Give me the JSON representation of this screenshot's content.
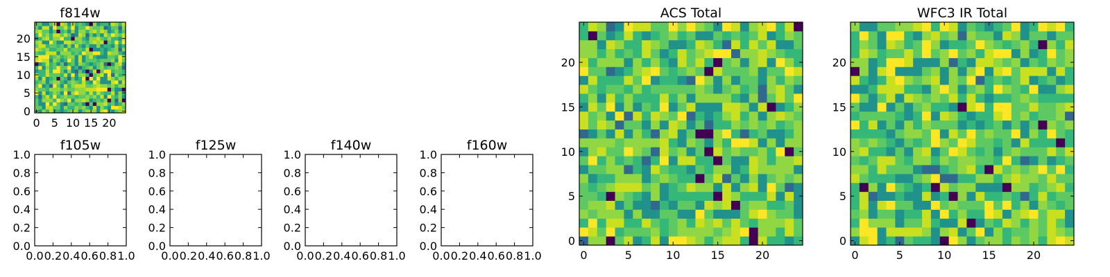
{
  "chart_data": [
    {
      "id": "f814w",
      "type": "heatmap",
      "title": "f814w",
      "grid": [
        25,
        25
      ],
      "xlim": [
        -0.5,
        24.5
      ],
      "ylim": [
        -0.5,
        24.5
      ],
      "xticks": [
        0,
        5,
        10,
        15,
        20
      ],
      "yticks": [
        0,
        5,
        10,
        15,
        20
      ],
      "colormap": "viridis",
      "values": "random noise 0-1"
    },
    {
      "id": "f105w",
      "type": "heatmap",
      "title": "f105w",
      "xlim": [
        0,
        1
      ],
      "ylim": [
        0,
        1
      ],
      "xticks": [
        "0.0",
        "0.2",
        "0.4",
        "0.6",
        "0.8",
        "1.0"
      ],
      "yticks": [
        "0.0",
        "0.2",
        "0.4",
        "0.6",
        "0.8",
        "1.0"
      ],
      "values": []
    },
    {
      "id": "f125w",
      "type": "heatmap",
      "title": "f125w",
      "xlim": [
        0,
        1
      ],
      "ylim": [
        0,
        1
      ],
      "xticks": [
        "0.0",
        "0.2",
        "0.4",
        "0.6",
        "0.8",
        "1.0"
      ],
      "yticks": [
        "0.0",
        "0.2",
        "0.4",
        "0.6",
        "0.8",
        "1.0"
      ],
      "values": []
    },
    {
      "id": "f140w",
      "type": "heatmap",
      "title": "f140w",
      "xlim": [
        0,
        1
      ],
      "ylim": [
        0,
        1
      ],
      "xticks": [
        "0.0",
        "0.2",
        "0.4",
        "0.6",
        "0.8",
        "1.0"
      ],
      "yticks": [
        "0.0",
        "0.2",
        "0.4",
        "0.6",
        "0.8",
        "1.0"
      ],
      "values": []
    },
    {
      "id": "f160w",
      "type": "heatmap",
      "title": "f160w",
      "xlim": [
        0,
        1
      ],
      "ylim": [
        0,
        1
      ],
      "xticks": [
        "0.0",
        "0.2",
        "0.4",
        "0.6",
        "0.8",
        "1.0"
      ],
      "yticks": [
        "0.0",
        "0.2",
        "0.4",
        "0.6",
        "0.8",
        "1.0"
      ],
      "values": []
    },
    {
      "id": "acs-total",
      "type": "heatmap",
      "title": "ACS Total",
      "grid": [
        25,
        25
      ],
      "xlim": [
        -0.5,
        24.5
      ],
      "ylim": [
        -0.5,
        24.5
      ],
      "xticks": [
        0,
        5,
        10,
        15,
        20
      ],
      "yticks": [
        0,
        5,
        10,
        15,
        20
      ],
      "colormap": "viridis",
      "values": "random noise 0-1"
    },
    {
      "id": "wfc3-ir-total",
      "type": "heatmap",
      "title": "WFC3 IR Total",
      "grid": [
        25,
        25
      ],
      "xlim": [
        -0.5,
        24.5
      ],
      "ylim": [
        -0.5,
        24.5
      ],
      "xticks": [
        0,
        5,
        10,
        15,
        20
      ],
      "yticks": [
        0,
        5,
        10,
        15,
        20
      ],
      "colormap": "viridis",
      "values": "random noise 0-1"
    }
  ]
}
